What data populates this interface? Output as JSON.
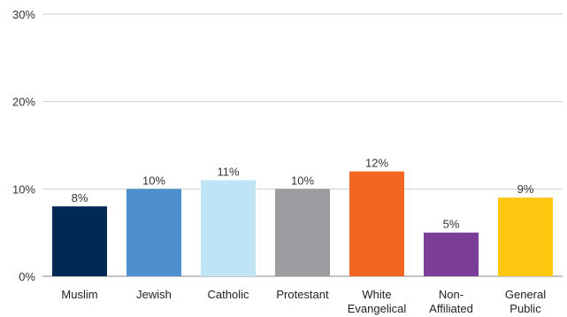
{
  "chart_data": {
    "type": "bar",
    "categories": [
      [
        "Muslim"
      ],
      [
        "Jewish"
      ],
      [
        "Catholic"
      ],
      [
        "Protestant"
      ],
      [
        "White",
        "Evangelical"
      ],
      [
        "Non-",
        "Affiliated"
      ],
      [
        "General",
        "Public"
      ]
    ],
    "values": [
      8,
      10,
      11,
      10,
      12,
      5,
      9
    ],
    "value_labels": [
      "8%",
      "10%",
      "11%",
      "10%",
      "12%",
      "5%",
      "9%"
    ],
    "colors": [
      "#002a54",
      "#4e8fd0",
      "#bfe4f6",
      "#9b9c9f",
      "#f26523",
      "#7b3f98",
      "#fcc70f"
    ],
    "ylim": [
      0,
      30
    ],
    "yticks": [
      {
        "value": 0,
        "label": "0%"
      },
      {
        "value": 10,
        "label": "10%"
      },
      {
        "value": 20,
        "label": "20%"
      },
      {
        "value": 30,
        "label": "30%"
      }
    ],
    "grid": true,
    "title": "",
    "xlabel": "",
    "ylabel": ""
  }
}
